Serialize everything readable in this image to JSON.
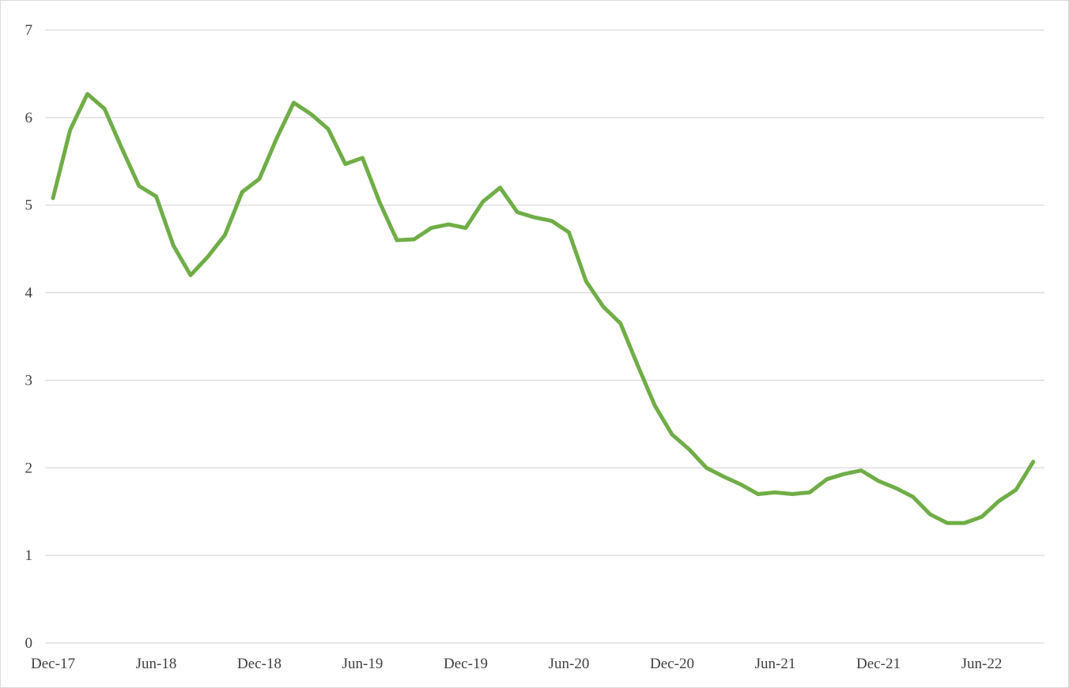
{
  "chart_data": {
    "type": "line",
    "title": "",
    "xlabel": "",
    "ylabel": "",
    "ylim": [
      0,
      7
    ],
    "y_ticks": [
      "0",
      "1",
      "2",
      "3",
      "4",
      "5",
      "6",
      "7"
    ],
    "grid": true,
    "legend": "none",
    "x_tick_labels": [
      {
        "index": 0,
        "label": "Dec-17"
      },
      {
        "index": 6,
        "label": "Jun-18"
      },
      {
        "index": 12,
        "label": "Dec-18"
      },
      {
        "index": 18,
        "label": "Jun-19"
      },
      {
        "index": 24,
        "label": "Dec-19"
      },
      {
        "index": 30,
        "label": "Jun-20"
      },
      {
        "index": 36,
        "label": "Dec-20"
      },
      {
        "index": 42,
        "label": "Jun-21"
      },
      {
        "index": 48,
        "label": "Dec-21"
      },
      {
        "index": 54,
        "label": "Jun-22"
      }
    ],
    "x": [
      "Dec-17",
      "Jan-18",
      "Feb-18",
      "Mar-18",
      "Apr-18",
      "May-18",
      "Jun-18",
      "Jul-18",
      "Aug-18",
      "Sep-18",
      "Oct-18",
      "Nov-18",
      "Dec-18",
      "Jan-19",
      "Feb-19",
      "Mar-19",
      "Apr-19",
      "May-19",
      "Jun-19",
      "Jul-19",
      "Aug-19",
      "Sep-19",
      "Oct-19",
      "Nov-19",
      "Dec-19",
      "Jan-20",
      "Feb-20",
      "Mar-20",
      "Apr-20",
      "May-20",
      "Jun-20",
      "Jul-20",
      "Aug-20",
      "Sep-20",
      "Oct-20",
      "Nov-20",
      "Dec-20",
      "Jan-21",
      "Feb-21",
      "Mar-21",
      "Apr-21",
      "May-21",
      "Jun-21",
      "Jul-21",
      "Aug-21",
      "Sep-21",
      "Oct-21",
      "Nov-21",
      "Dec-21",
      "Jan-22",
      "Feb-22",
      "Mar-22",
      "Apr-22",
      "May-22",
      "Jun-22",
      "Jul-22",
      "Aug-22",
      "Sep-22"
    ],
    "series": [
      {
        "color": "#70ad47",
        "values": [
          5.08,
          5.86,
          6.27,
          6.1,
          5.65,
          5.22,
          5.1,
          4.54,
          4.2,
          4.41,
          4.66,
          5.15,
          5.3,
          5.76,
          6.17,
          6.04,
          5.87,
          5.47,
          5.54,
          5.03,
          4.6,
          4.61,
          4.74,
          4.78,
          4.74,
          5.04,
          5.2,
          4.92,
          4.86,
          4.82,
          4.69,
          4.13,
          3.84,
          3.65,
          3.17,
          2.71,
          2.38,
          2.21,
          2.0,
          1.9,
          1.81,
          1.7,
          1.72,
          1.7,
          1.72,
          1.87,
          1.93,
          1.97,
          1.85,
          1.77,
          1.67,
          1.47,
          1.37,
          1.37,
          1.44,
          1.62,
          1.75,
          2.07
        ]
      }
    ]
  }
}
